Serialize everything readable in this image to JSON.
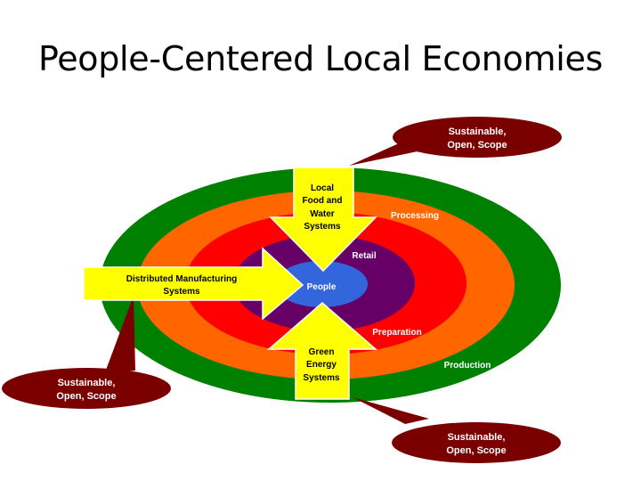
{
  "title": "People-Centered Local Economies",
  "rings": {
    "production": "Production",
    "processing": "Processing",
    "preparation": "Preparation",
    "retail": "Retail",
    "people": "People"
  },
  "arrows": {
    "top": [
      "Local",
      "Food and",
      "Water",
      "Systems"
    ],
    "left": [
      "Distributed Manufacturing",
      "Systems"
    ],
    "bottom": [
      "Green",
      "Energy",
      "Systems"
    ]
  },
  "callouts": {
    "top_right": [
      "Sustainable,",
      "Open, Scope"
    ],
    "bottom_left": [
      "Sustainable,",
      "Open, Scope"
    ],
    "bottom_right": [
      "Sustainable,",
      "Open, Scope"
    ]
  },
  "colors": {
    "production": "#008000",
    "processing": "#ff6600",
    "preparation": "#ff0000",
    "retail": "#660066",
    "people": "#3366dd",
    "arrow": "#ffff00",
    "callout": "#7a0000"
  }
}
